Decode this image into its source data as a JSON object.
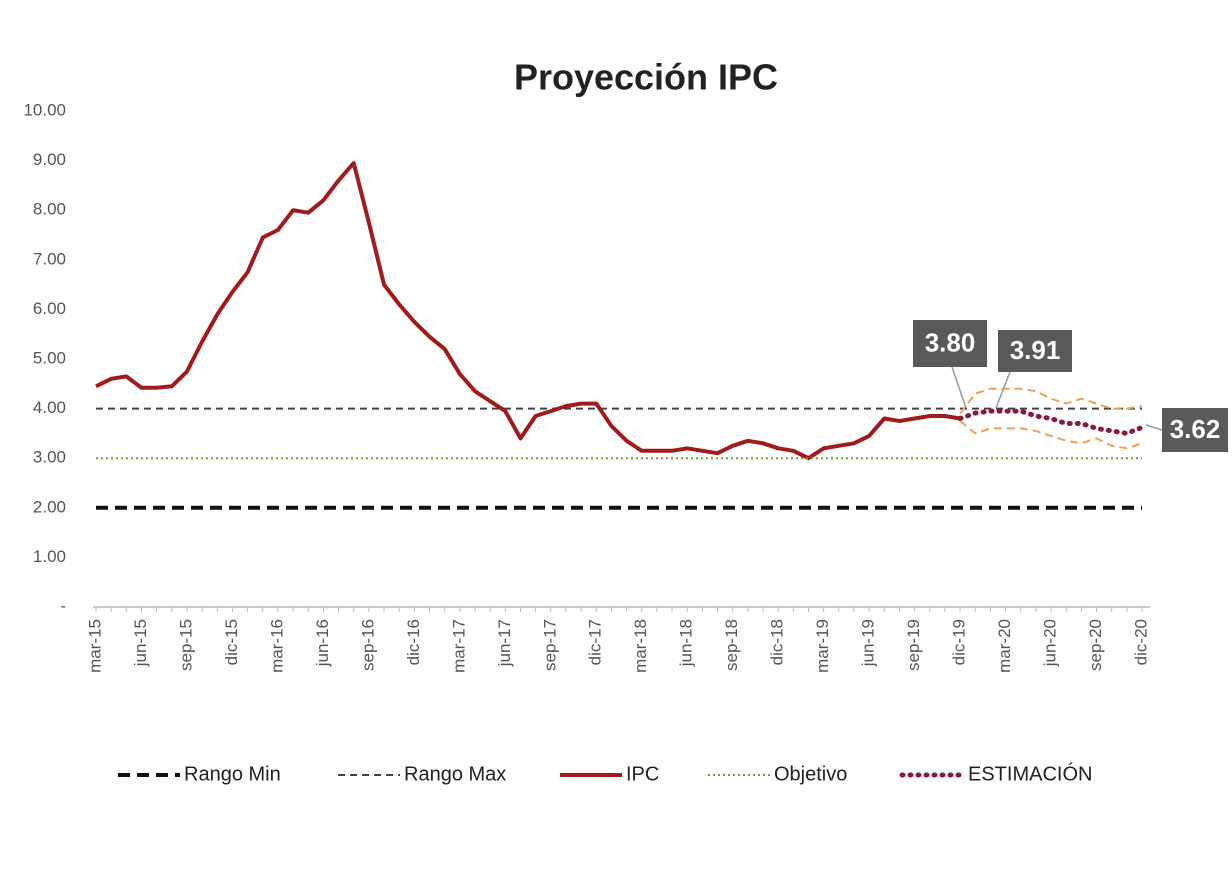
{
  "chart_data": {
    "type": "line",
    "title": "Proyección IPC",
    "categories": [
      "mar-15",
      null,
      null,
      "jun-15",
      null,
      null,
      "sep-15",
      null,
      null,
      "dic-15",
      null,
      null,
      "mar-16",
      null,
      null,
      "jun-16",
      null,
      null,
      "sep-16",
      null,
      null,
      "dic-16",
      null,
      null,
      "mar-17",
      null,
      null,
      "jun-17",
      null,
      null,
      "sep-17",
      null,
      null,
      "dic-17",
      null,
      null,
      "mar-18",
      null,
      null,
      "jun-18",
      null,
      null,
      "sep-18",
      null,
      null,
      "dic-18",
      null,
      null,
      "mar-19",
      null,
      null,
      "jun-19",
      null,
      null,
      "sep-19",
      null,
      null,
      "dic-19",
      null,
      null,
      "mar-20",
      null,
      null,
      "jun-20",
      null,
      null,
      "sep-20",
      null,
      null,
      "dic-20"
    ],
    "ylim": [
      0,
      10
    ],
    "yticks": [
      {
        "value": 0,
        "label": "-"
      },
      {
        "value": 1,
        "label": "1.00"
      },
      {
        "value": 2,
        "label": "2.00"
      },
      {
        "value": 3,
        "label": "3.00"
      },
      {
        "value": 4,
        "label": "4.00"
      },
      {
        "value": 5,
        "label": "5.00"
      },
      {
        "value": 6,
        "label": "6.00"
      },
      {
        "value": 7,
        "label": "7.00"
      },
      {
        "value": 8,
        "label": "8.00"
      },
      {
        "value": 9,
        "label": "9.00"
      },
      {
        "value": 10,
        "label": "10.00"
      }
    ],
    "grid": false,
    "legend": "bottom",
    "annotations": [
      "3.80",
      "3.91",
      "3.62"
    ],
    "series": [
      {
        "name": "Rango Min",
        "color": "#111111",
        "style": "dashed",
        "values": [
          2,
          2,
          2,
          2,
          2,
          2,
          2,
          2,
          2,
          2,
          2,
          2,
          2,
          2,
          2,
          2,
          2,
          2,
          2,
          2,
          2,
          2,
          2,
          2,
          2,
          2,
          2,
          2,
          2,
          2,
          2,
          2,
          2,
          2,
          2,
          2,
          2,
          2,
          2,
          2,
          2,
          2,
          2,
          2,
          2,
          2,
          2,
          2,
          2,
          2,
          2,
          2,
          2,
          2,
          2,
          2,
          2,
          2,
          2,
          2,
          2,
          2,
          2,
          2,
          2,
          2,
          2,
          2,
          2,
          2
        ]
      },
      {
        "name": "Rango Max",
        "color": "#444444",
        "style": "dashed",
        "values": [
          4,
          4,
          4,
          4,
          4,
          4,
          4,
          4,
          4,
          4,
          4,
          4,
          4,
          4,
          4,
          4,
          4,
          4,
          4,
          4,
          4,
          4,
          4,
          4,
          4,
          4,
          4,
          4,
          4,
          4,
          4,
          4,
          4,
          4,
          4,
          4,
          4,
          4,
          4,
          4,
          4,
          4,
          4,
          4,
          4,
          4,
          4,
          4,
          4,
          4,
          4,
          4,
          4,
          4,
          4,
          4,
          4,
          4,
          4,
          4,
          4,
          4,
          4,
          4,
          4,
          4,
          4,
          4,
          4,
          4
        ]
      },
      {
        "name": "IPC",
        "color": "#a31a1a",
        "style": "solid",
        "values": [
          4.45,
          4.6,
          4.65,
          4.42,
          4.42,
          4.45,
          4.75,
          5.35,
          5.9,
          6.35,
          6.75,
          7.45,
          7.6,
          8.0,
          7.95,
          8.2,
          8.6,
          8.95,
          7.75,
          6.5,
          6.1,
          5.75,
          5.45,
          5.2,
          4.7,
          4.35,
          4.15,
          3.95,
          3.4,
          3.85,
          3.95,
          4.05,
          4.1,
          4.1,
          3.65,
          3.35,
          3.15,
          3.15,
          3.15,
          3.2,
          3.15,
          3.1,
          3.25,
          3.35,
          3.3,
          3.2,
          3.15,
          3.0,
          3.2,
          3.25,
          3.3,
          3.45,
          3.8,
          3.75,
          3.8,
          3.85,
          3.85,
          3.8,
          null,
          null,
          null,
          null,
          null,
          null,
          null,
          null,
          null,
          null,
          null,
          null
        ]
      },
      {
        "name": "Objetivo",
        "color": "#7a9a3a",
        "style": "dotted",
        "values": [
          3,
          3,
          3,
          3,
          3,
          3,
          3,
          3,
          3,
          3,
          3,
          3,
          3,
          3,
          3,
          3,
          3,
          3,
          3,
          3,
          3,
          3,
          3,
          3,
          3,
          3,
          3,
          3,
          3,
          3,
          3,
          3,
          3,
          3,
          3,
          3,
          3,
          3,
          3,
          3,
          3,
          3,
          3,
          3,
          3,
          3,
          3,
          3,
          3,
          3,
          3,
          3,
          3,
          3,
          3,
          3,
          3,
          3,
          3,
          3,
          3,
          3,
          3,
          3,
          3,
          3,
          3,
          3,
          3,
          3
        ]
      },
      {
        "name": "ESTIMACIÓN",
        "color": "#8b1a3a",
        "style": "dots",
        "values": [
          null,
          null,
          null,
          null,
          null,
          null,
          null,
          null,
          null,
          null,
          null,
          null,
          null,
          null,
          null,
          null,
          null,
          null,
          null,
          null,
          null,
          null,
          null,
          null,
          null,
          null,
          null,
          null,
          null,
          null,
          null,
          null,
          null,
          null,
          null,
          null,
          null,
          null,
          null,
          null,
          null,
          null,
          null,
          null,
          null,
          null,
          null,
          null,
          null,
          null,
          null,
          null,
          null,
          null,
          null,
          null,
          null,
          3.8,
          3.91,
          3.95,
          3.95,
          3.95,
          3.85,
          3.8,
          3.7,
          3.7,
          3.6,
          3.55,
          3.5,
          3.62
        ]
      },
      {
        "color": "#f0a050",
        "style": "band",
        "values": [
          null,
          null,
          null,
          null,
          null,
          null,
          null,
          null,
          null,
          null,
          null,
          null,
          null,
          null,
          null,
          null,
          null,
          null,
          null,
          null,
          null,
          null,
          null,
          null,
          null,
          null,
          null,
          null,
          null,
          null,
          null,
          null,
          null,
          null,
          null,
          null,
          null,
          null,
          null,
          null,
          null,
          null,
          null,
          null,
          null,
          null,
          null,
          null,
          null,
          null,
          null,
          null,
          null,
          null,
          null,
          null,
          null,
          3.9,
          4.3,
          4.4,
          4.4,
          4.4,
          4.35,
          4.2,
          4.1,
          4.2,
          4.1,
          4.0,
          4.0,
          4.05
        ]
      },
      {
        "color": "#f0a050",
        "style": "band",
        "values": [
          null,
          null,
          null,
          null,
          null,
          null,
          null,
          null,
          null,
          null,
          null,
          null,
          null,
          null,
          null,
          null,
          null,
          null,
          null,
          null,
          null,
          null,
          null,
          null,
          null,
          null,
          null,
          null,
          null,
          null,
          null,
          null,
          null,
          null,
          null,
          null,
          null,
          null,
          null,
          null,
          null,
          null,
          null,
          null,
          null,
          null,
          null,
          null,
          null,
          null,
          null,
          null,
          null,
          null,
          null,
          null,
          null,
          3.75,
          3.5,
          3.6,
          3.6,
          3.6,
          3.55,
          3.45,
          3.35,
          3.3,
          3.4,
          3.25,
          3.2,
          3.3
        ]
      }
    ]
  }
}
